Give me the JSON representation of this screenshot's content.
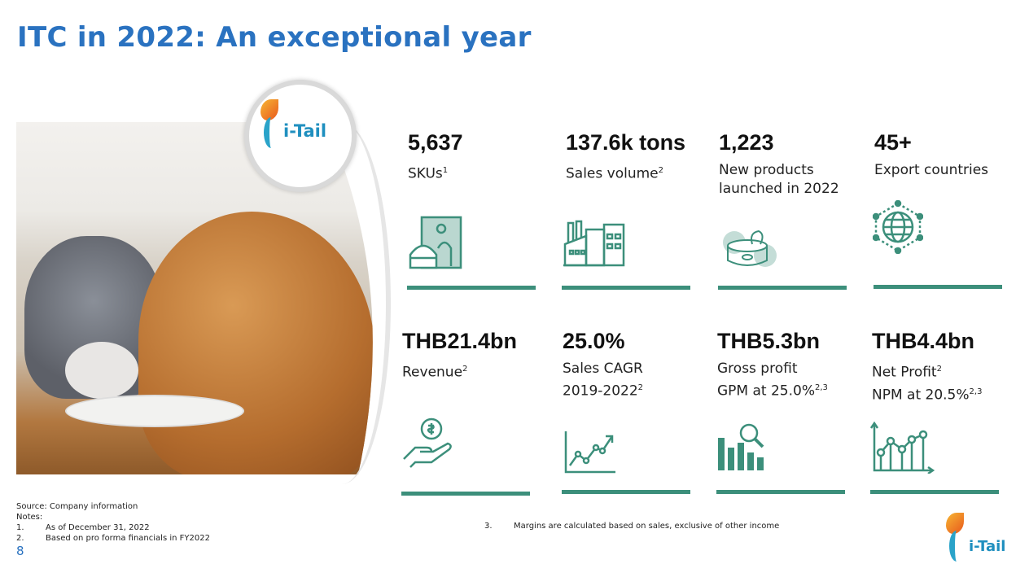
{
  "title": "ITC in 2022: An exceptional year",
  "logo_text": "i-Tail",
  "stats": [
    {
      "value": "5,637",
      "label": "SKUs",
      "sup": "1",
      "icon": "pet-food-bag-icon"
    },
    {
      "value": "137.6k tons",
      "label": "Sales volume",
      "sup": "2",
      "icon": "factory-icon"
    },
    {
      "value": "1,223",
      "label": "New products launched in 2022",
      "sup": "",
      "icon": "tuna-can-icon"
    },
    {
      "value": "45+",
      "label": "Export countries",
      "sup": "",
      "icon": "globe-network-icon"
    },
    {
      "value": "THB21.4bn",
      "label": "Revenue",
      "sup": "2",
      "icon": "money-hand-icon"
    },
    {
      "value": "25.0%",
      "label": "Sales CAGR 2019-2022",
      "sup": "2",
      "icon": "growth-chart-icon"
    },
    {
      "value": "THB5.3bn",
      "label": "Gross profit",
      "label2": "GPM at 25.0%",
      "sup": "2,3",
      "icon": "bar-chart-magnifier-icon"
    },
    {
      "value": "THB4.4bn",
      "label": "Net Profit",
      "sup": "2",
      "label2": "NPM at 20.5%",
      "sup2": "2,3",
      "icon": "line-bar-chart-icon"
    }
  ],
  "footer": {
    "source": "Source: Company information",
    "notes_label": "Notes:",
    "notes": [
      {
        "n": "1.",
        "text": "As of December 31, 2022"
      },
      {
        "n": "2.",
        "text": "Based on pro forma financials in FY2022"
      },
      {
        "n": "3.",
        "text": "Margins are calculated based on sales, exclusive of other income"
      }
    ],
    "page": "8"
  },
  "colors": {
    "title": "#2a72c0",
    "accent": "#3c8f7b"
  }
}
